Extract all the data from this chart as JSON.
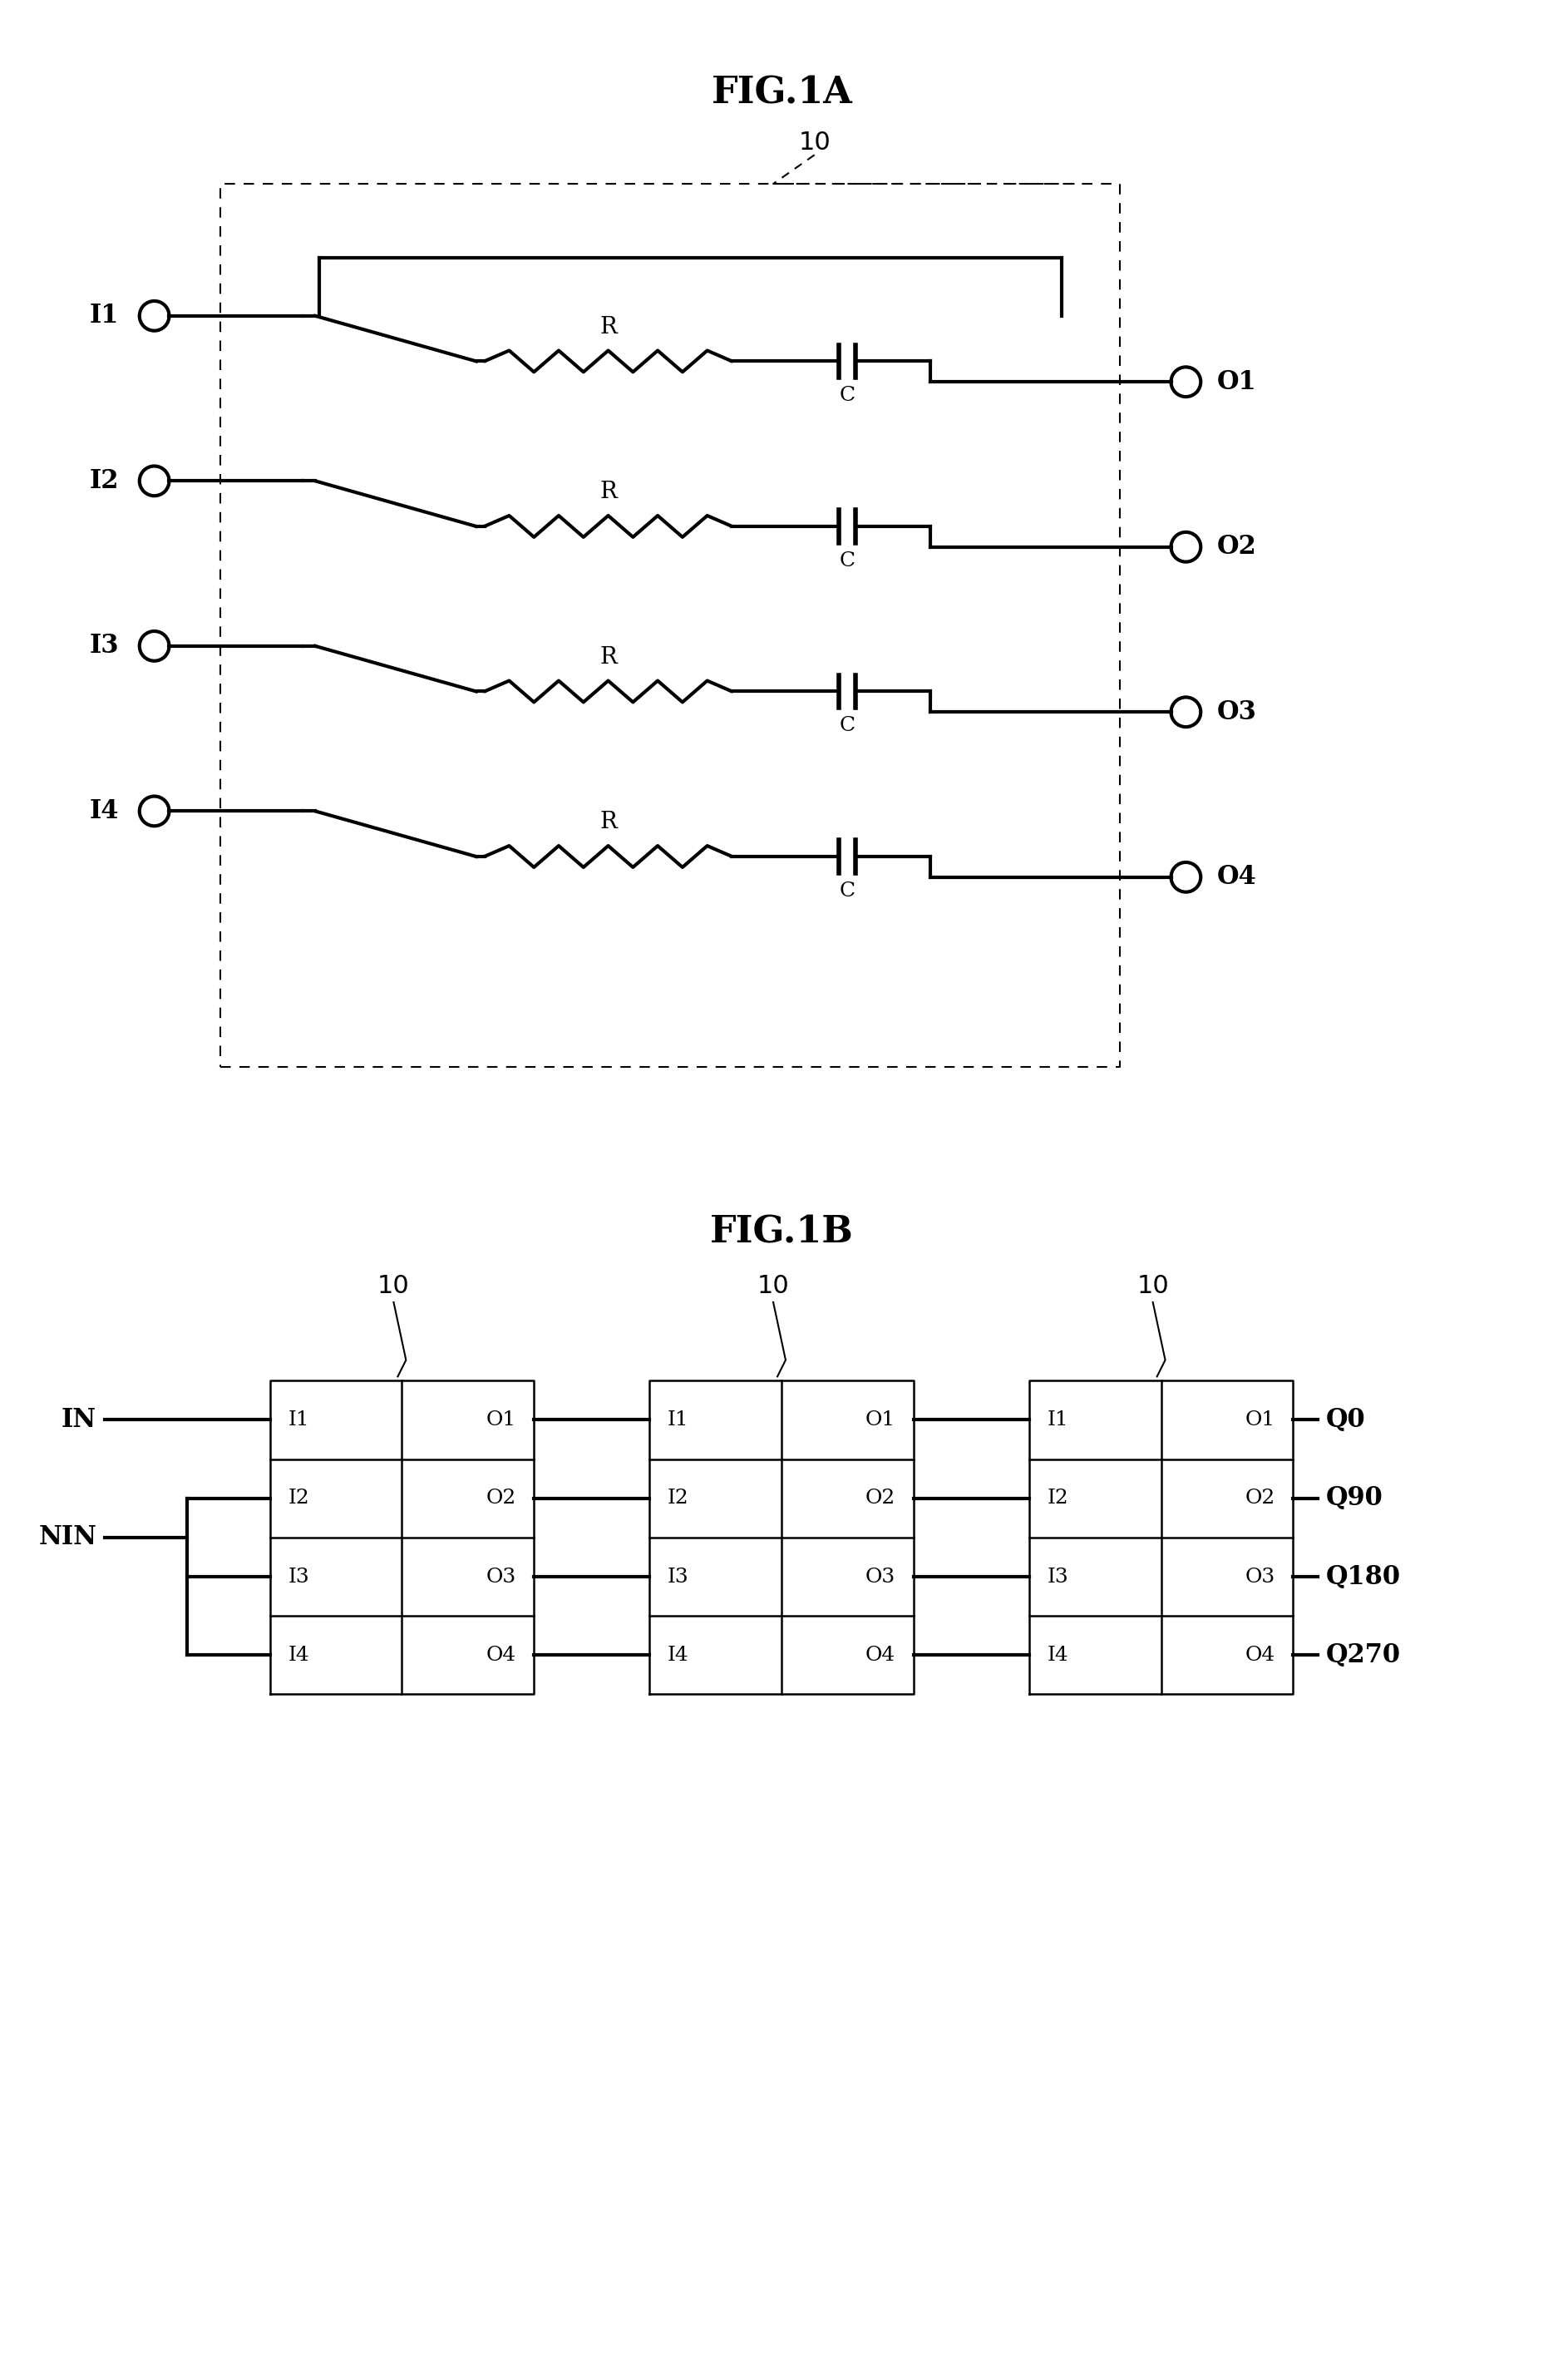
{
  "fig_width": 18.81,
  "fig_height": 28.62,
  "bg_color": "#ffffff",
  "title1": "FIG.1A",
  "title2": "FIG.1B",
  "label_10": "10",
  "inputs": [
    "I1",
    "I2",
    "I3",
    "I4"
  ],
  "outputs": [
    "O1",
    "O2",
    "O3",
    "O4"
  ],
  "figB_labels_out": [
    "Q0",
    "Q90",
    "Q180",
    "Q270"
  ],
  "lw_main": 3.0,
  "lw_thin": 1.8,
  "lw_dashed": 1.5,
  "fs_title": 32,
  "fs_label": 22,
  "fs_port": 18,
  "fs_component": 20,
  "circle_r": 0.18
}
